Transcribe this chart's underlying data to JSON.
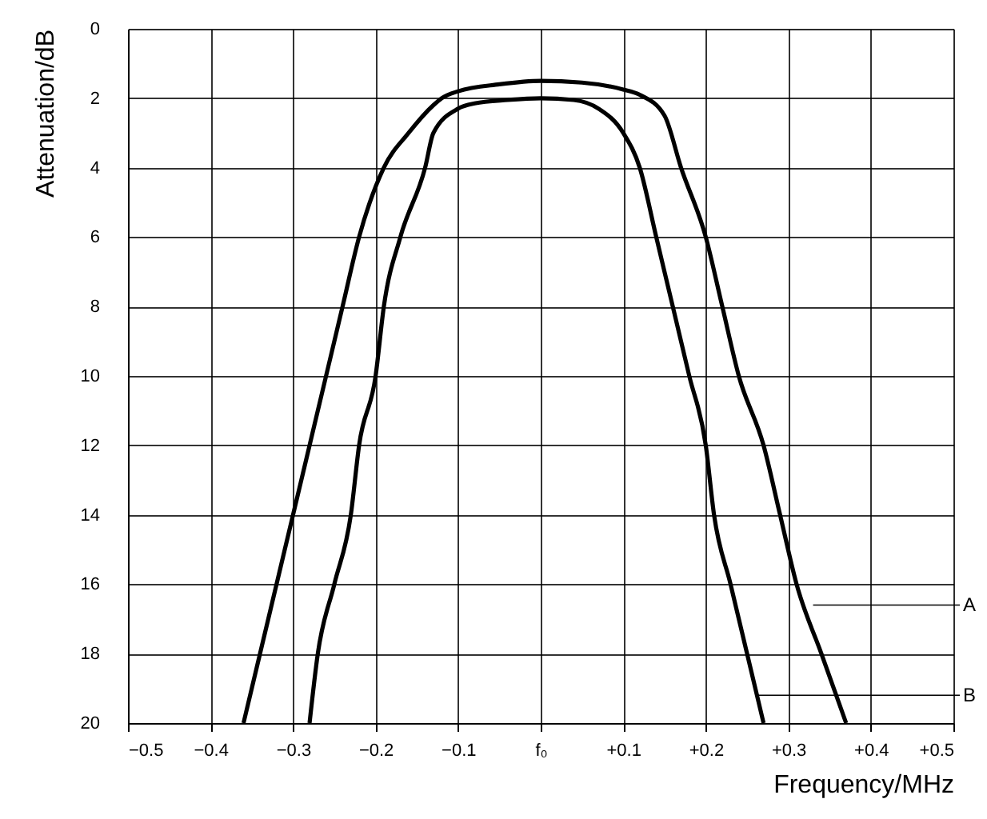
{
  "chart_data": {
    "type": "line",
    "xlabel": "Frequency/MHz",
    "ylabel": "Attenuation/dB",
    "xlim": [
      -0.5,
      0.5
    ],
    "ylim": [
      20,
      0
    ],
    "xticks": [
      -0.5,
      -0.4,
      -0.3,
      -0.2,
      -0.1,
      {
        "value": 0,
        "label": "f₀"
      },
      {
        "value": 0.1,
        "label": "+0.1"
      },
      {
        "value": 0.2,
        "label": "+0.2"
      },
      {
        "value": 0.3,
        "label": "+0.3"
      },
      {
        "value": 0.4,
        "label": "+0.4"
      },
      {
        "value": 0.5,
        "label": "+0.5"
      }
    ],
    "yticks": [
      0,
      2,
      4,
      6,
      8,
      10,
      12,
      14,
      16,
      18,
      20
    ],
    "grid": true,
    "line_style": "solid",
    "marker": "none",
    "series": [
      {
        "color": "#000000",
        "x": [
          -0.36,
          -0.34,
          -0.32,
          -0.3,
          -0.28,
          -0.26,
          -0.24,
          -0.22,
          -0.19,
          -0.16,
          -0.13,
          -0.12,
          -0.1,
          -0.05,
          0,
          0.05,
          0.1,
          0.12,
          0.15,
          0.17,
          0.2,
          0.22,
          0.24,
          0.27,
          0.29,
          0.31,
          0.34,
          0.37
        ],
        "values": [
          20,
          18,
          16,
          14,
          12,
          10,
          8,
          6,
          4,
          3,
          2.2,
          2.0,
          1.8,
          1.6,
          1.5,
          1.55,
          1.75,
          1.9,
          2.5,
          4,
          6,
          8,
          10,
          12,
          14,
          16,
          18,
          20
        ]
      },
      {
        "color": "#000000",
        "x": [
          -0.28,
          -0.27,
          -0.25,
          -0.23,
          -0.22,
          -0.2,
          -0.19,
          -0.17,
          -0.14,
          -0.13,
          -0.1,
          -0.08,
          -0.04,
          0,
          0.04,
          0.07,
          0.1,
          0.12,
          0.14,
          0.16,
          0.18,
          0.2,
          0.21,
          0.23,
          0.25,
          0.27
        ],
        "values": [
          20,
          18,
          16,
          14,
          12,
          10,
          8,
          6,
          4,
          3,
          2.3,
          2.15,
          2.05,
          2.0,
          2.05,
          2.3,
          3.0,
          4,
          6,
          8,
          10,
          12,
          14,
          16,
          18,
          20
        ]
      }
    ],
    "annotations": [
      {
        "text": "A",
        "x": 0.33,
        "y": 16.6
      },
      {
        "text": "B",
        "x": 0.26,
        "y": 19.2
      }
    ]
  }
}
